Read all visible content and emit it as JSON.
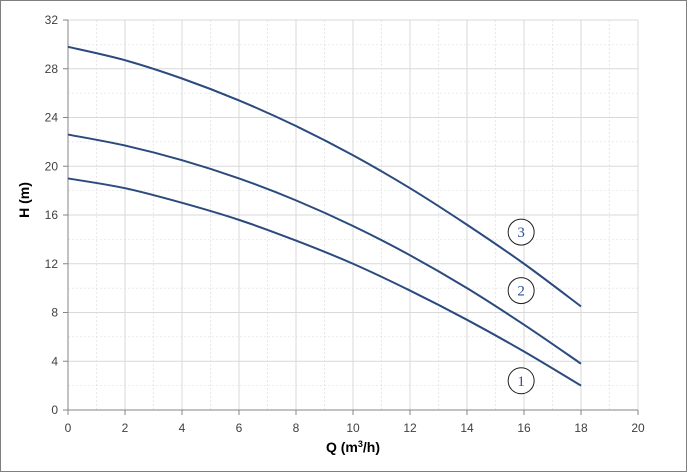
{
  "chart_data": {
    "type": "line",
    "title": "",
    "xlabel": "Q (m³/h)",
    "ylabel": "H (m)",
    "xlim": [
      0,
      20
    ],
    "ylim": [
      0,
      32
    ],
    "x_ticks": [
      0,
      2,
      4,
      6,
      8,
      10,
      12,
      14,
      16,
      18,
      20
    ],
    "y_ticks": [
      0,
      4,
      8,
      12,
      16,
      20,
      24,
      28,
      32
    ],
    "grid": true,
    "legend": "none",
    "series": [
      {
        "name": "1",
        "x": [
          0,
          2,
          4,
          6,
          8,
          10,
          12,
          14,
          16,
          18
        ],
        "values": [
          19.0,
          18.2,
          17.0,
          15.6,
          13.9,
          12.0,
          9.8,
          7.4,
          4.8,
          2.0
        ]
      },
      {
        "name": "2",
        "x": [
          0,
          2,
          4,
          6,
          8,
          10,
          12,
          14,
          16,
          18
        ],
        "values": [
          22.6,
          21.7,
          20.5,
          19.0,
          17.2,
          15.1,
          12.7,
          10.0,
          7.0,
          3.8
        ]
      },
      {
        "name": "3",
        "x": [
          0,
          2,
          4,
          6,
          8,
          10,
          12,
          14,
          16,
          18
        ],
        "values": [
          29.8,
          28.7,
          27.2,
          25.4,
          23.3,
          20.9,
          18.2,
          15.2,
          12.0,
          8.5
        ]
      }
    ],
    "label_positions": [
      {
        "name": "1",
        "x": 15.9,
        "y": 2.4
      },
      {
        "name": "2",
        "x": 15.9,
        "y": 9.8
      },
      {
        "name": "3",
        "x": 15.9,
        "y": 14.6
      }
    ],
    "colors": {
      "line": "#2b4a7e",
      "grid": "#d9d9d9",
      "axis": "#868686",
      "label": "#2f4f8f"
    }
  }
}
